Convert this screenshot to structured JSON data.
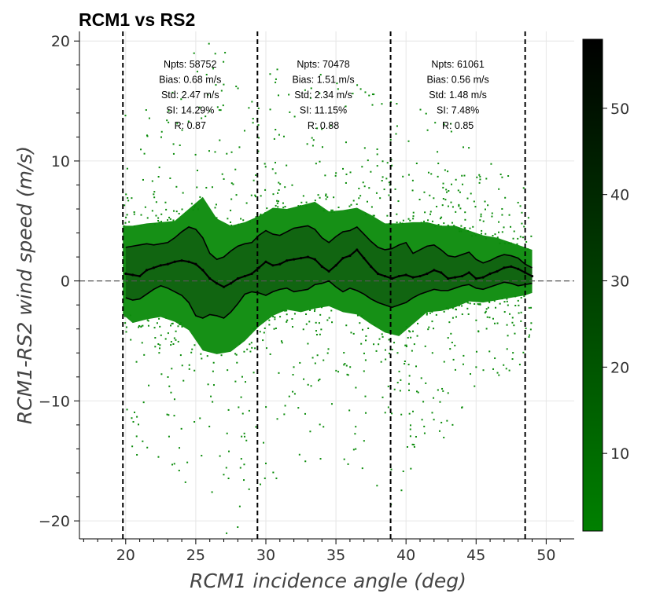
{
  "chart_data": {
    "type": "heatmap",
    "title": "RCM1 vs RS2",
    "xlabel": "RCM1 incidence angle (deg)",
    "ylabel": "RCM1-RS2 wind speed (m/s)",
    "xlim": [
      16.7,
      52.0
    ],
    "ylim": [
      -21.5,
      20.8
    ],
    "xticks": [
      20,
      25,
      30,
      35,
      40,
      45,
      50
    ],
    "yticks": [
      -20,
      -10,
      0,
      10,
      20
    ],
    "x_tick_labels": [
      "20",
      "25",
      "30",
      "35",
      "40",
      "45",
      "50"
    ],
    "y_tick_labels": [
      "−20",
      "−10",
      "0",
      "10",
      "20"
    ],
    "grid": true,
    "colorbar": {
      "ticks": [
        10,
        20,
        30,
        40,
        50
      ],
      "tick_labels": [
        "10",
        "20",
        "30",
        "40",
        "50"
      ],
      "range": [
        1,
        58
      ],
      "colors": [
        "#008000",
        "#000000"
      ]
    },
    "zero_line": 0,
    "beam_boundaries": [
      19.8,
      29.4,
      38.9,
      48.5
    ],
    "beam_stats": [
      {
        "lines": [
          "Npts: 58752",
          "Bias: 0.68 m/s",
          "Std: 2.47 m/s",
          "SI: 14.29%",
          "R: 0.87"
        ],
        "center_x": 24.6
      },
      {
        "lines": [
          "Npts: 70478",
          "Bias: 1.51 m/s",
          "Std: 2.34 m/s",
          "SI: 11.15%",
          "R: 0.88"
        ],
        "center_x": 34.1
      },
      {
        "lines": [
          "Npts: 61061",
          "Bias: 0.56 m/s",
          "Std: 1.48 m/s",
          "SI: 7.48%",
          "R: 0.85"
        ],
        "center_x": 43.7
      }
    ],
    "mean_line": {
      "x": [
        20.0,
        20.5,
        21.0,
        21.5,
        22.0,
        22.5,
        23.0,
        23.5,
        24.0,
        24.5,
        25.0,
        25.5,
        26.0,
        26.5,
        27.0,
        27.5,
        28.0,
        28.5,
        29.0,
        29.5,
        30.0,
        30.5,
        31.0,
        31.5,
        32.0,
        32.5,
        33.0,
        33.5,
        34.0,
        34.5,
        35.0,
        35.5,
        36.0,
        36.5,
        37.0,
        37.5,
        38.0,
        38.5,
        39.0,
        39.5,
        40.0,
        40.5,
        41.0,
        41.5,
        42.0,
        42.5,
        43.0,
        43.5,
        44.0,
        44.5,
        45.0,
        45.5,
        46.0,
        46.5,
        47.0,
        47.5,
        48.0,
        48.5,
        49.0
      ],
      "y": [
        0.6,
        0.5,
        0.4,
        0.9,
        1.1,
        1.3,
        1.4,
        1.6,
        1.7,
        1.6,
        1.4,
        0.9,
        0.2,
        -0.2,
        -0.5,
        -0.2,
        0.2,
        0.4,
        0.6,
        1.1,
        1.6,
        1.3,
        1.4,
        1.7,
        1.8,
        1.9,
        2.0,
        1.8,
        1.2,
        0.8,
        1.3,
        1.9,
        2.1,
        2.6,
        1.9,
        1.2,
        0.6,
        0.4,
        0.2,
        0.4,
        0.5,
        0.3,
        0.4,
        0.6,
        0.9,
        0.7,
        0.2,
        0.3,
        0.4,
        0.7,
        0.2,
        0.3,
        0.6,
        0.8,
        1.1,
        1.2,
        1.0,
        0.7,
        0.4
      ]
    },
    "upper_line": {
      "x": [
        20.0,
        20.5,
        21.0,
        21.5,
        22.0,
        22.5,
        23.0,
        23.5,
        24.0,
        24.5,
        25.0,
        25.5,
        26.0,
        26.5,
        27.0,
        27.5,
        28.0,
        28.5,
        29.0,
        29.5,
        30.0,
        30.5,
        31.0,
        31.5,
        32.0,
        32.5,
        33.0,
        33.5,
        34.0,
        34.5,
        35.0,
        35.5,
        36.0,
        36.5,
        37.0,
        37.5,
        38.0,
        38.5,
        39.0,
        39.5,
        40.0,
        40.5,
        41.0,
        41.5,
        42.0,
        42.5,
        43.0,
        43.5,
        44.0,
        44.5,
        45.0,
        45.5,
        46.0,
        46.5,
        47.0,
        47.5,
        48.0,
        48.5,
        49.0
      ],
      "y": [
        2.8,
        2.9,
        3.0,
        3.1,
        3.0,
        3.1,
        3.2,
        3.6,
        4.1,
        4.5,
        4.3,
        3.6,
        2.3,
        1.8,
        2.0,
        2.5,
        2.9,
        3.1,
        3.2,
        3.8,
        4.2,
        3.9,
        3.8,
        4.1,
        4.4,
        4.5,
        4.6,
        4.3,
        3.6,
        3.2,
        3.7,
        4.1,
        4.2,
        4.5,
        3.9,
        3.3,
        2.8,
        2.6,
        2.7,
        3.0,
        3.2,
        2.3,
        2.6,
        2.9,
        3.0,
        2.6,
        2.1,
        2.0,
        2.2,
        2.4,
        1.8,
        1.5,
        1.7,
        2.0,
        2.2,
        2.1,
        1.9,
        1.4,
        1.1
      ]
    },
    "lower_line": {
      "x": [
        20.0,
        20.5,
        21.0,
        21.5,
        22.0,
        22.5,
        23.0,
        23.5,
        24.0,
        24.5,
        25.0,
        25.5,
        26.0,
        26.5,
        27.0,
        27.5,
        28.0,
        28.5,
        29.0,
        29.5,
        30.0,
        30.5,
        31.0,
        31.5,
        32.0,
        32.5,
        33.0,
        33.5,
        34.0,
        34.5,
        35.0,
        35.5,
        36.0,
        36.5,
        37.0,
        37.5,
        38.0,
        38.5,
        39.0,
        39.5,
        40.0,
        40.5,
        41.0,
        41.5,
        42.0,
        42.5,
        43.0,
        43.5,
        44.0,
        44.5,
        45.0,
        45.5,
        46.0,
        46.5,
        47.0,
        47.5,
        48.0,
        48.5,
        49.0
      ],
      "y": [
        -1.4,
        -1.6,
        -1.5,
        -1.1,
        -0.7,
        -0.4,
        -0.6,
        -0.9,
        -1.2,
        -1.8,
        -2.9,
        -3.1,
        -2.8,
        -2.9,
        -3.1,
        -2.6,
        -1.9,
        -1.1,
        -0.9,
        -1.0,
        -1.2,
        -0.9,
        -0.7,
        -0.6,
        -0.9,
        -0.8,
        -0.7,
        -0.3,
        -0.2,
        0.0,
        -0.5,
        -0.9,
        -0.6,
        -0.8,
        -1.1,
        -1.5,
        -1.8,
        -2.0,
        -2.2,
        -2.0,
        -1.8,
        -1.4,
        -1.1,
        -0.9,
        -0.7,
        -0.8,
        -0.8,
        -0.6,
        -0.4,
        -0.3,
        -0.6,
        -0.7,
        -0.5,
        -0.3,
        -0.1,
        -0.2,
        -0.4,
        -0.3,
        -0.2
      ]
    },
    "density_core": {
      "x": [
        19.8,
        20.5,
        21.5,
        22.5,
        23.5,
        24.5,
        25.5,
        26.5,
        27.5,
        28.5,
        29.5,
        30.5,
        31.5,
        32.5,
        33.5,
        34.5,
        35.5,
        36.5,
        37.5,
        38.5,
        39.5,
        40.5,
        41.5,
        42.5,
        43.5,
        44.5,
        45.5,
        46.5,
        47.5,
        48.5,
        49.0
      ],
      "upper": [
        4.6,
        4.6,
        4.8,
        4.9,
        5.0,
        6.0,
        7.0,
        5.2,
        4.6,
        4.9,
        5.4,
        6.1,
        6.0,
        6.3,
        6.6,
        5.8,
        5.9,
        6.1,
        5.5,
        4.8,
        4.8,
        4.9,
        4.9,
        4.6,
        4.6,
        4.2,
        3.8,
        3.6,
        3.2,
        2.8,
        2.6
      ],
      "lower": [
        -2.8,
        -3.5,
        -3.2,
        -3.0,
        -3.4,
        -4.1,
        -5.8,
        -6.1,
        -5.9,
        -5.0,
        -3.8,
        -2.9,
        -2.4,
        -2.6,
        -2.3,
        -2.1,
        -2.6,
        -2.8,
        -3.6,
        -4.3,
        -4.6,
        -3.6,
        -2.6,
        -2.5,
        -2.2,
        -1.7,
        -1.8,
        -1.6,
        -1.4,
        -1.2,
        -1.0
      ]
    }
  }
}
